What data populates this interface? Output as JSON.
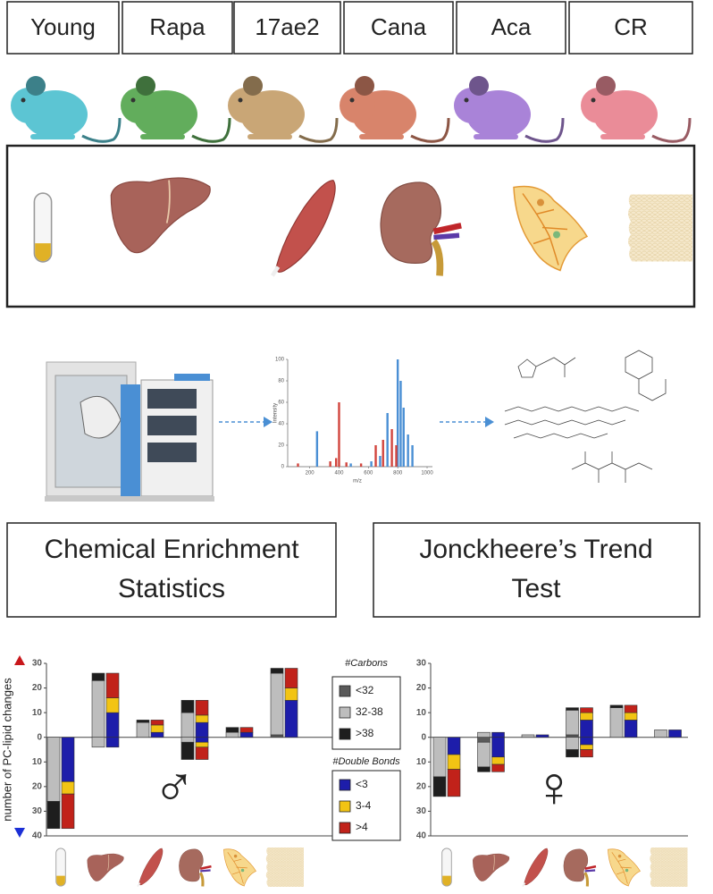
{
  "groups": [
    {
      "label": "Young",
      "color": "#5cc5d3"
    },
    {
      "label": "Rapa",
      "color": "#62ad5c"
    },
    {
      "label": "17ae2",
      "color": "#c9a676"
    },
    {
      "label": "Cana",
      "color": "#d8846b"
    },
    {
      "label": "Aca",
      "color": "#a983d8"
    },
    {
      "label": "CR",
      "color": "#ea8c98"
    }
  ],
  "spectrum": {
    "xlabel": "m/z",
    "ylabel": "Intensity",
    "xlim": [
      50,
      1000
    ],
    "ylim": [
      0,
      100
    ],
    "xticks": [
      200,
      400,
      600,
      800,
      1000
    ],
    "yticks": [
      0,
      20,
      40,
      60,
      80,
      100
    ],
    "series": [
      {
        "color": "#4a8fd4",
        "x": [
          250,
          480,
          620,
          680,
          730,
          800,
          820,
          840,
          870,
          900
        ],
        "values": [
          33,
          3,
          5,
          10,
          50,
          100,
          80,
          55,
          30,
          20
        ]
      },
      {
        "color": "#d2453e",
        "x": [
          120,
          340,
          380,
          400,
          450,
          550,
          650,
          700,
          760,
          790
        ],
        "values": [
          3,
          5,
          8,
          60,
          4,
          3,
          20,
          25,
          35,
          20
        ]
      }
    ]
  },
  "panels": [
    {
      "title": "Chemical Enrichment Statistics"
    },
    {
      "title": "Jonckheere’s Trend Test"
    }
  ],
  "legend": {
    "carbons": {
      "title": "#Carbons",
      "series": [
        {
          "name": "<32",
          "color": "#5a5a5a"
        },
        {
          "name": "32-38",
          "color": "#bdbdbd"
        },
        {
          "name": ">38",
          "color": "#1e1e1e"
        }
      ]
    },
    "double_bonds": {
      "title": "#Double Bonds",
      "series": [
        {
          "name": "<3",
          "color": "#1d1daa"
        },
        {
          "name": "3-4",
          "color": "#f2c414"
        },
        {
          "name": ">4",
          "color": "#c1221a"
        }
      ]
    }
  },
  "chart_data": [
    {
      "type": "stacked_bar",
      "ylabel": "number of PC-lipid changes",
      "symbol": "♂",
      "ylim": [
        -40,
        30
      ],
      "yticks": [
        30,
        20,
        10,
        0,
        {
          "value": -10,
          "label": "10"
        },
        {
          "value": -20,
          "label": "20"
        },
        {
          "value": -30,
          "label": "30"
        },
        {
          "value": -40,
          "label": "40"
        }
      ],
      "carbons": [
        {
          "up": [
            0,
            0,
            0,
            0,
            0,
            1
          ],
          "down": [
            0,
            0,
            0,
            0,
            0,
            0
          ]
        },
        {
          "up": [
            0,
            23,
            6,
            10,
            2,
            25
          ],
          "down": [
            -26,
            -4,
            0,
            -2,
            0,
            0
          ]
        },
        {
          "up": [
            0,
            3,
            1,
            5,
            2,
            2
          ],
          "down": [
            -11,
            0,
            0,
            -7,
            0,
            0
          ]
        }
      ],
      "double_bonds": [
        {
          "up": [
            0,
            10,
            2,
            6,
            2,
            15
          ],
          "down": [
            -18,
            -4,
            0,
            -2,
            0,
            0
          ]
        },
        {
          "up": [
            0,
            6,
            3,
            3,
            0,
            5
          ],
          "down": [
            -5,
            0,
            0,
            -2,
            0,
            0
          ]
        },
        {
          "up": [
            0,
            10,
            2,
            6,
            2,
            8
          ],
          "down": [
            -14,
            0,
            0,
            -5,
            0,
            0
          ]
        }
      ]
    },
    {
      "type": "stacked_bar",
      "symbol": "♀",
      "ylim": [
        -40,
        30
      ],
      "yticks": [
        30,
        20,
        10,
        0,
        {
          "value": -10,
          "label": "10"
        },
        {
          "value": -20,
          "label": "20"
        },
        {
          "value": -30,
          "label": "30"
        },
        {
          "value": -40,
          "label": "40"
        }
      ],
      "carbons": [
        {
          "up": [
            0,
            0,
            0,
            1,
            0,
            0
          ],
          "down": [
            0,
            -2,
            0,
            0,
            0,
            0
          ]
        },
        {
          "up": [
            0,
            2,
            1,
            10,
            12,
            3
          ],
          "down": [
            -16,
            -10,
            0,
            -5,
            0,
            0
          ]
        },
        {
          "up": [
            0,
            0,
            0,
            1,
            1,
            0
          ],
          "down": [
            -8,
            -2,
            0,
            -3,
            0,
            0
          ]
        }
      ],
      "double_bonds": [
        {
          "up": [
            0,
            2,
            1,
            7,
            7,
            3
          ],
          "down": [
            -7,
            -8,
            0,
            -3,
            0,
            0
          ]
        },
        {
          "up": [
            0,
            0,
            0,
            3,
            3,
            0
          ],
          "down": [
            -6,
            -3,
            0,
            -2,
            0,
            0
          ]
        },
        {
          "up": [
            0,
            0,
            0,
            2,
            3,
            0
          ],
          "down": [
            -11,
            -3,
            0,
            -3,
            0,
            0
          ]
        }
      ]
    }
  ]
}
